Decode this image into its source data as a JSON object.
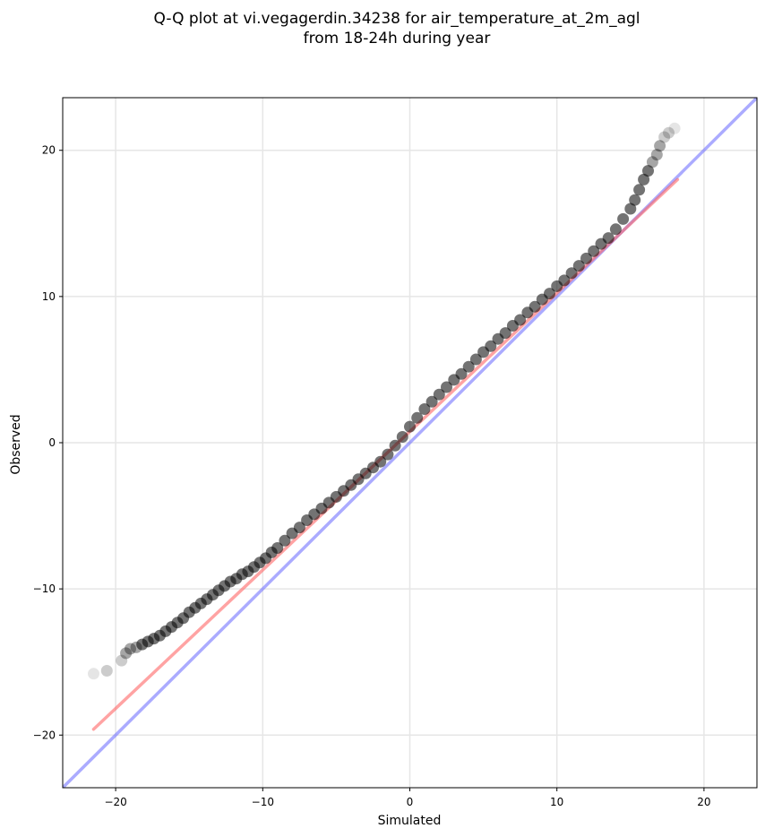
{
  "chart_data": {
    "type": "scatter",
    "title": "Q-Q plot at vi.vegagerdin.34238 for air_temperature_at_2m_agl",
    "subtitle": "from 18-24h during year",
    "xlabel": "Simulated",
    "ylabel": "Observed",
    "xlim": [
      -23.6,
      23.6
    ],
    "ylim": [
      -23.6,
      23.6
    ],
    "xticks": [
      -20,
      -10,
      0,
      10,
      20
    ],
    "yticks": [
      -20,
      -10,
      0,
      10,
      20
    ],
    "xtick_labels": [
      "−20",
      "−10",
      "0",
      "10",
      "20"
    ],
    "ytick_labels": [
      "−20",
      "−10",
      "0",
      "10",
      "20"
    ],
    "grid": true,
    "colors": {
      "points": "#000000",
      "fit_line": "#ff6666",
      "identity_line": "#6666ff",
      "grid": "#e6e6e6"
    },
    "quantiles": {
      "x": [
        -21.5,
        -20.6,
        -19.6,
        -19.3,
        -19.0,
        -18.6,
        -18.2,
        -17.8,
        -17.4,
        -17.0,
        -16.6,
        -16.2,
        -15.8,
        -15.4,
        -15.0,
        -14.6,
        -14.2,
        -13.8,
        -13.4,
        -13.0,
        -12.6,
        -12.2,
        -11.8,
        -11.4,
        -11.0,
        -10.6,
        -10.2,
        -9.8,
        -9.4,
        -9.0,
        -8.5,
        -8.0,
        -7.5,
        -7.0,
        -6.5,
        -6.0,
        -5.5,
        -5.0,
        -4.5,
        -4.0,
        -3.5,
        -3.0,
        -2.5,
        -2.0,
        -1.5,
        -1.0,
        -0.5,
        0.0,
        0.5,
        1.0,
        1.5,
        2.0,
        2.5,
        3.0,
        3.5,
        4.0,
        4.5,
        5.0,
        5.5,
        6.0,
        6.5,
        7.0,
        7.5,
        8.0,
        8.5,
        9.0,
        9.5,
        10.0,
        10.5,
        11.0,
        11.5,
        12.0,
        12.5,
        13.0,
        13.5,
        14.0,
        14.5,
        15.0,
        15.3,
        15.6,
        15.9,
        16.2,
        16.5,
        16.8,
        17.0,
        17.3,
        17.6,
        18.0
      ],
      "y": [
        -15.8,
        -15.6,
        -14.9,
        -14.4,
        -14.1,
        -14.0,
        -13.8,
        -13.6,
        -13.4,
        -13.2,
        -12.9,
        -12.6,
        -12.3,
        -12.0,
        -11.6,
        -11.3,
        -11.0,
        -10.7,
        -10.4,
        -10.1,
        -9.8,
        -9.5,
        -9.3,
        -9.0,
        -8.8,
        -8.5,
        -8.2,
        -7.9,
        -7.5,
        -7.2,
        -6.7,
        -6.2,
        -5.8,
        -5.3,
        -4.9,
        -4.5,
        -4.1,
        -3.7,
        -3.3,
        -2.9,
        -2.5,
        -2.1,
        -1.7,
        -1.3,
        -0.8,
        -0.2,
        0.4,
        1.1,
        1.7,
        2.3,
        2.8,
        3.3,
        3.8,
        4.3,
        4.7,
        5.2,
        5.7,
        6.2,
        6.6,
        7.1,
        7.5,
        8.0,
        8.4,
        8.9,
        9.3,
        9.8,
        10.2,
        10.7,
        11.1,
        11.6,
        12.1,
        12.6,
        13.1,
        13.6,
        14.0,
        14.6,
        15.3,
        16.0,
        16.6,
        17.3,
        18.0,
        18.6,
        19.2,
        19.7,
        20.3,
        20.9,
        21.2,
        21.5
      ]
    },
    "fit_line": {
      "x": [
        -21.5,
        18.2
      ],
      "y": [
        -19.6,
        18.0
      ]
    },
    "identity_line": {
      "x": [
        -23.6,
        23.6
      ],
      "y": [
        -23.6,
        23.6
      ]
    }
  }
}
